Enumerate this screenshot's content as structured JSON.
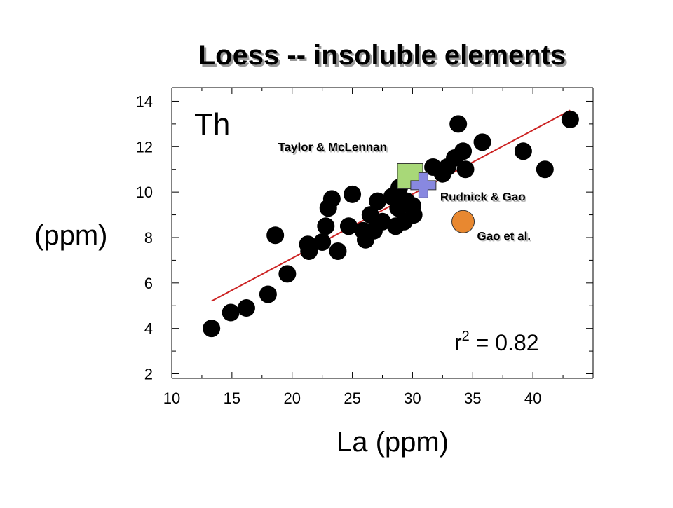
{
  "chart_data": {
    "type": "scatter",
    "title": "Loess -- insoluble elements",
    "xlabel": "La (ppm)",
    "ylabel": "(ppm)",
    "element_label": "Th",
    "xlim": [
      10,
      45
    ],
    "ylim": [
      1.8,
      14.6
    ],
    "xticks": [
      10,
      15,
      20,
      25,
      30,
      35,
      40
    ],
    "yticks": [
      2,
      4,
      6,
      8,
      10,
      12,
      14
    ],
    "grid": false,
    "r_squared": {
      "base": "r",
      "exp": "2",
      "text": " = 0.82"
    },
    "regression_line": {
      "x": [
        13.3,
        43.1
      ],
      "y": [
        5.2,
        13.6
      ],
      "color": "#cc2222"
    },
    "series": [
      {
        "color": "#000000",
        "points": [
          [
            13.3,
            4.0
          ],
          [
            14.9,
            4.7
          ],
          [
            16.2,
            4.9
          ],
          [
            18.0,
            5.5
          ],
          [
            18.6,
            8.1
          ],
          [
            19.6,
            6.4
          ],
          [
            21.3,
            7.7
          ],
          [
            21.4,
            7.4
          ],
          [
            22.5,
            7.8
          ],
          [
            22.8,
            8.5
          ],
          [
            23.0,
            9.3
          ],
          [
            23.3,
            9.7
          ],
          [
            23.8,
            7.4
          ],
          [
            24.7,
            8.5
          ],
          [
            25.0,
            9.9
          ],
          [
            25.9,
            8.3
          ],
          [
            26.1,
            7.9
          ],
          [
            26.5,
            9.0
          ],
          [
            26.8,
            8.3
          ],
          [
            27.1,
            9.6
          ],
          [
            27.5,
            8.7
          ],
          [
            28.3,
            9.8
          ],
          [
            28.6,
            8.5
          ],
          [
            28.8,
            9.3
          ],
          [
            28.9,
            10.2
          ],
          [
            29.3,
            8.7
          ],
          [
            29.5,
            9.6
          ],
          [
            30.0,
            9.4
          ],
          [
            30.1,
            9.0
          ],
          [
            31.7,
            11.1
          ],
          [
            32.5,
            10.8
          ],
          [
            32.9,
            11.1
          ],
          [
            33.5,
            11.5
          ],
          [
            33.8,
            13.0
          ],
          [
            34.2,
            11.8
          ],
          [
            34.4,
            11.0
          ],
          [
            35.8,
            12.2
          ],
          [
            39.2,
            11.8
          ],
          [
            41.0,
            11.0
          ],
          [
            43.1,
            13.2
          ]
        ]
      }
    ],
    "reference_points": [
      {
        "label": "Taylor & McLennan",
        "x": 29.8,
        "y": 10.7,
        "color": "#a8d878",
        "shape": "square"
      },
      {
        "label": "Rudnick & Gao",
        "x": 30.9,
        "y": 10.3,
        "color": "#8888e0",
        "shape": "cross"
      },
      {
        "label": "Gao et al.",
        "x": 34.2,
        "y": 8.7,
        "color": "#e88830",
        "shape": "circle"
      }
    ]
  }
}
